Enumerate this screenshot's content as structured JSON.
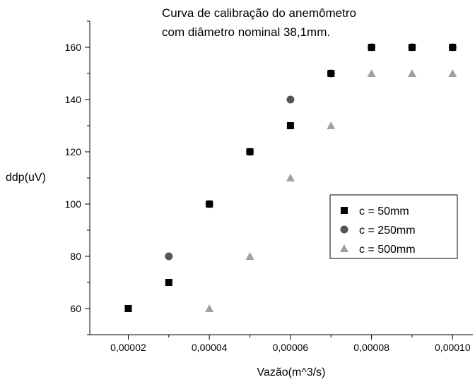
{
  "chart_data": {
    "type": "scatter",
    "title_lines": [
      "Curva de calibração do anemômetro",
      "com diâmetro nominal 38,1mm."
    ],
    "xlabel": "Vazão(m^3/s)",
    "ylabel": "ddp(uV)",
    "xlim": [
      1.05e-05,
      0.000105
    ],
    "ylim": [
      50,
      170
    ],
    "x_ticks": [
      2e-05,
      4e-05,
      6e-05,
      8e-05,
      0.0001
    ],
    "x_tick_labels": [
      "0,00002",
      "0,00004",
      "0,00006",
      "0,00008",
      "0,00010"
    ],
    "y_ticks": [
      60,
      80,
      100,
      120,
      140,
      160
    ],
    "y_tick_labels": [
      "60",
      "80",
      "100",
      "120",
      "140",
      "160"
    ],
    "grid": false,
    "legend_position": "right",
    "series": [
      {
        "name": "c = 50mm",
        "marker": "square",
        "color": "#000000",
        "points": [
          [
            2e-05,
            60
          ],
          [
            3e-05,
            70
          ],
          [
            4e-05,
            100
          ],
          [
            5e-05,
            120
          ],
          [
            6e-05,
            130
          ],
          [
            7e-05,
            150
          ],
          [
            8e-05,
            160
          ],
          [
            9e-05,
            160
          ],
          [
            0.0001,
            160
          ]
        ]
      },
      {
        "name": "c = 250mm",
        "marker": "circle",
        "color": "#555555",
        "points": [
          [
            3e-05,
            80
          ],
          [
            4e-05,
            100
          ],
          [
            5e-05,
            120
          ],
          [
            6e-05,
            140
          ],
          [
            7e-05,
            150
          ],
          [
            8e-05,
            160
          ],
          [
            9e-05,
            160
          ],
          [
            0.0001,
            160
          ]
        ]
      },
      {
        "name": "c = 500mm",
        "marker": "triangle",
        "color": "#a0a0a0",
        "points": [
          [
            4e-05,
            60
          ],
          [
            5e-05,
            80
          ],
          [
            6e-05,
            110
          ],
          [
            7e-05,
            130
          ],
          [
            8e-05,
            150
          ],
          [
            9e-05,
            150
          ],
          [
            0.0001,
            150
          ]
        ]
      }
    ]
  }
}
